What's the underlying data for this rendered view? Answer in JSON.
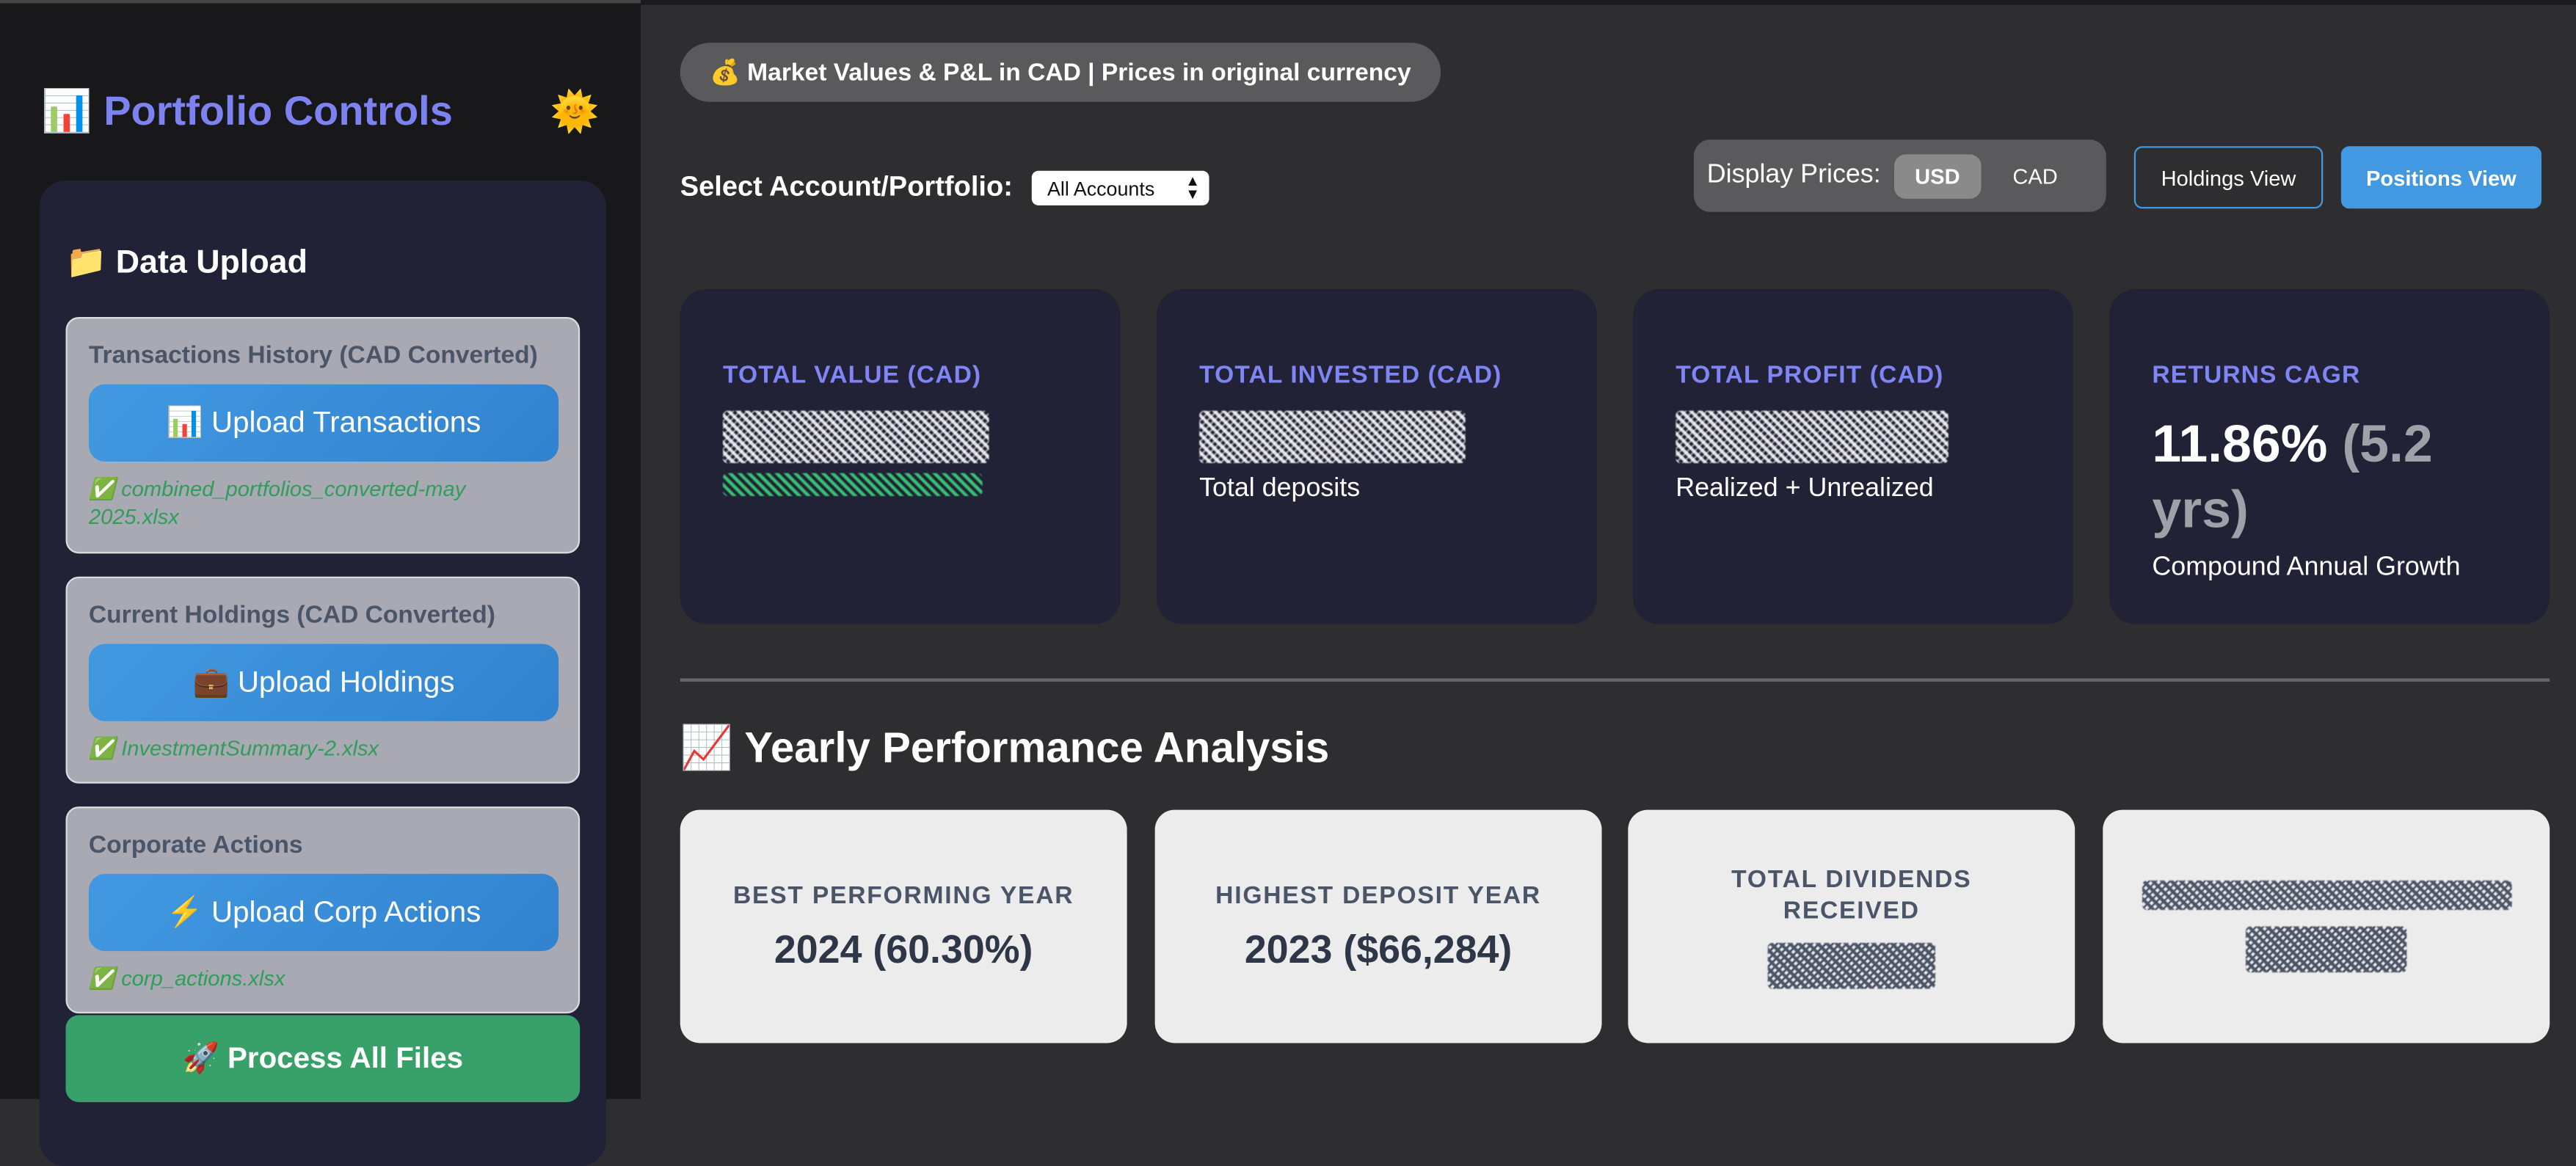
{
  "sidebar": {
    "title": "📊 Portfolio Controls",
    "theme_icon": "🌞",
    "section_title": "📁 Data Upload",
    "uploads": [
      {
        "label": "Transactions History (CAD Converted)",
        "button": "📊 Upload Transactions",
        "file": "✅ combined_portfolios_converted-may 2025.xlsx"
      },
      {
        "label": "Current Holdings (CAD Converted)",
        "button": "💼 Upload Holdings",
        "file": "✅ InvestmentSummary-2.xlsx"
      },
      {
        "label": "Corporate Actions",
        "button": "⚡ Upload Corp Actions",
        "file": "✅ corp_actions.xlsx"
      }
    ],
    "process_button": "🚀 Process All Files"
  },
  "main": {
    "banner": "💰 Market Values & P&L in CAD | Prices in original currency",
    "account_label": "Select Account/Portfolio:",
    "account_selected": "All Accounts",
    "display_prices_label": "Display Prices:",
    "currency_options": [
      "USD",
      "CAD"
    ],
    "currency_selected": "USD",
    "holdings_view": "Holdings View",
    "positions_view": "Positions View",
    "metrics": [
      {
        "label": "TOTAL VALUE (CAD)",
        "sub": ""
      },
      {
        "label": "TOTAL INVESTED (CAD)",
        "sub": "Total deposits"
      },
      {
        "label": "TOTAL PROFIT (CAD)",
        "sub": "Realized + Unrealized"
      },
      {
        "label": "RETURNS CAGR",
        "value": "11.86%",
        "value_extra": "(5.2 yrs)",
        "sub": "Compound Annual Growth"
      }
    ],
    "section_title": "📈 Yearly Performance Analysis",
    "yearly": [
      {
        "label": "BEST PERFORMING YEAR",
        "value": "2024 (60.30%)"
      },
      {
        "label": "HIGHEST DEPOSIT YEAR",
        "value": "2023 ($66,284)"
      },
      {
        "label": "TOTAL DIVIDENDS RECEIVED"
      }
    ]
  }
}
